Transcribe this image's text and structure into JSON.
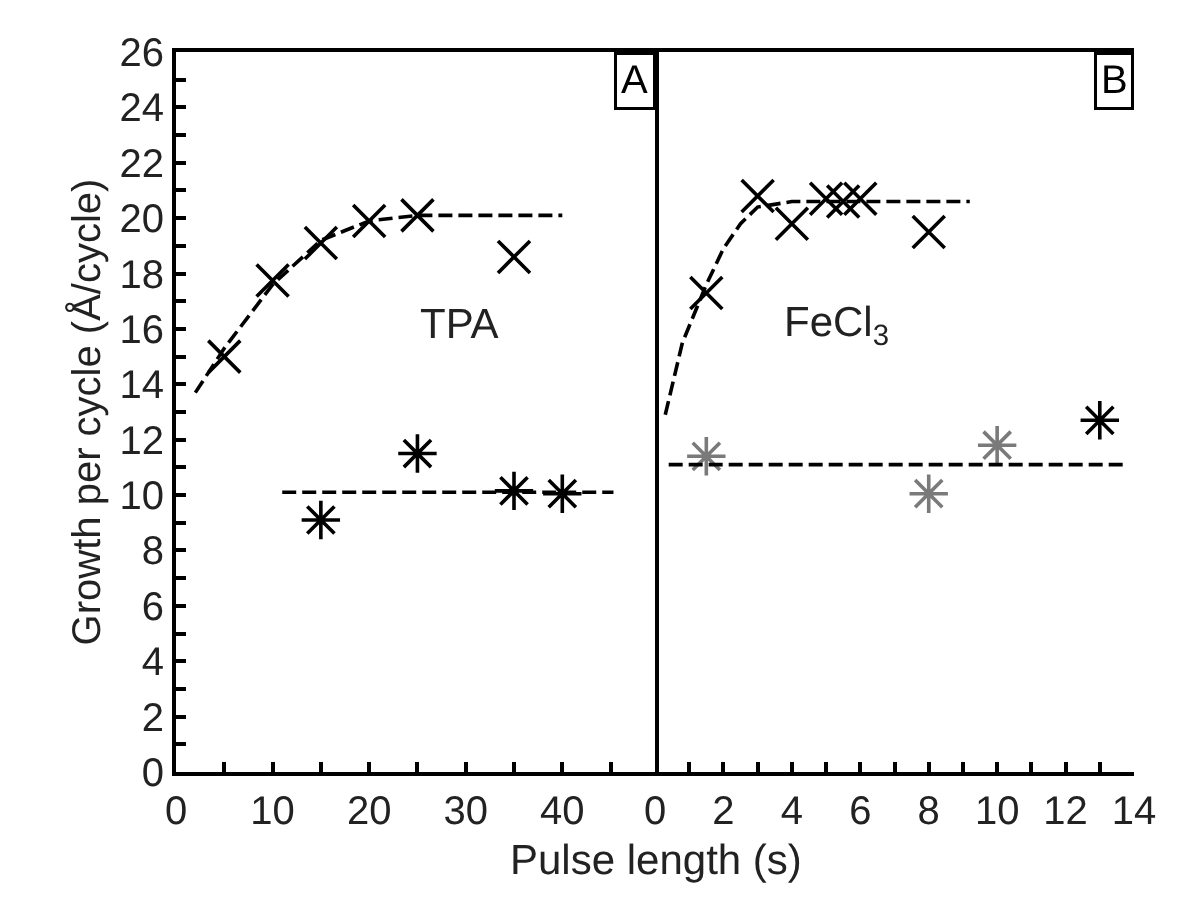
{
  "chart_data": [
    {
      "type": "scatter",
      "xlabel": "Pulse length (s)",
      "ylabel": "Growth per cycle (Å/cycle)",
      "annotations": [
        "A",
        "TPA"
      ],
      "xlim": [
        0,
        49.6
      ],
      "xticks": [
        0,
        {
          "value": 5,
          "label": null
        },
        10,
        {
          "value": 15,
          "label": null
        },
        20,
        {
          "value": 25,
          "label": null
        },
        30,
        {
          "value": 35,
          "label": null
        },
        40,
        {
          "value": 45,
          "label": null
        }
      ],
      "ylim": [
        0,
        26
      ],
      "yticks": [
        0,
        {
          "value": 1,
          "label": null
        },
        2,
        {
          "value": 3,
          "label": null
        },
        4,
        {
          "value": 5,
          "label": null
        },
        6,
        {
          "value": 7,
          "label": null
        },
        8,
        {
          "value": 9,
          "label": null
        },
        10,
        {
          "value": 11,
          "label": null
        },
        12,
        {
          "value": 13,
          "label": null
        },
        14,
        {
          "value": 15,
          "label": null
        },
        16,
        {
          "value": 17,
          "label": null
        },
        18,
        {
          "value": 19,
          "label": null
        },
        20,
        {
          "value": 21,
          "label": null
        },
        22,
        {
          "value": 23,
          "label": null
        },
        24,
        {
          "value": 25,
          "label": null
        },
        26
      ],
      "series": [
        {
          "marker": "cross",
          "color": "#000000",
          "x": [
            5,
            10,
            15,
            20,
            25,
            35
          ],
          "values": [
            15.0,
            17.75,
            19.1,
            19.9,
            20.1,
            18.6
          ]
        },
        {
          "color": "#000000",
          "x": [
            15,
            25,
            35,
            40
          ],
          "values": [
            9.1,
            11.5,
            10.15,
            10.05
          ]
        },
        {
          "type": "line",
          "marker": "none",
          "line_style": "dashed",
          "color": "#000000",
          "x": [
            2,
            5,
            10,
            15,
            20,
            25,
            40
          ],
          "values": [
            13.7,
            15.3,
            17.6,
            19.2,
            19.9,
            20.1,
            20.1
          ]
        },
        {
          "type": "line",
          "marker": "none",
          "line_style": "dashed",
          "color": "#000000",
          "x": [
            11,
            45.3
          ],
          "values": [
            10.1,
            10.1
          ]
        }
      ]
    },
    {
      "type": "scatter",
      "annotations": [
        "B",
        "FeCl$_{3}$"
      ],
      "xlim": [
        0,
        14
      ],
      "xticks": [
        0,
        {
          "value": 1,
          "label": null
        },
        2,
        {
          "value": 3,
          "label": null
        },
        4,
        {
          "value": 5,
          "label": null
        },
        6,
        {
          "value": 7,
          "label": null
        },
        8,
        {
          "value": 9,
          "label": null
        },
        10,
        {
          "value": 11,
          "label": null
        },
        12,
        {
          "value": 13,
          "label": null
        },
        14
      ],
      "ylim": [
        0,
        26
      ],
      "tick_labels": "x",
      "series": [
        {
          "marker": "cross",
          "color": "#000000",
          "x": [
            1.5,
            3,
            4,
            5,
            5.5,
            6,
            8
          ],
          "values": [
            17.3,
            20.8,
            19.8,
            20.7,
            20.6,
            20.7,
            19.5
          ]
        },
        {
          "colors": [
            "#7a7a7a",
            "#7a7a7a",
            "#7a7a7a",
            "#000000"
          ],
          "x": [
            1.5,
            8,
            10,
            13
          ],
          "values": [
            11.4,
            10.05,
            11.8,
            12.7
          ]
        },
        {
          "type": "line",
          "marker": "none",
          "line_style": "dashed",
          "color": "#000000",
          "x": [
            0.3,
            0.8,
            1.5,
            2,
            2.5,
            3,
            4,
            6,
            9.2
          ],
          "values": [
            12.9,
            15.5,
            17.6,
            18.9,
            19.8,
            20.4,
            20.6,
            20.6,
            20.6
          ]
        },
        {
          "type": "line",
          "marker": "none",
          "line_style": "dashed",
          "color": "#000000",
          "x": [
            0.4,
            13.7
          ],
          "values": [
            11.1,
            11.1
          ]
        }
      ]
    }
  ]
}
